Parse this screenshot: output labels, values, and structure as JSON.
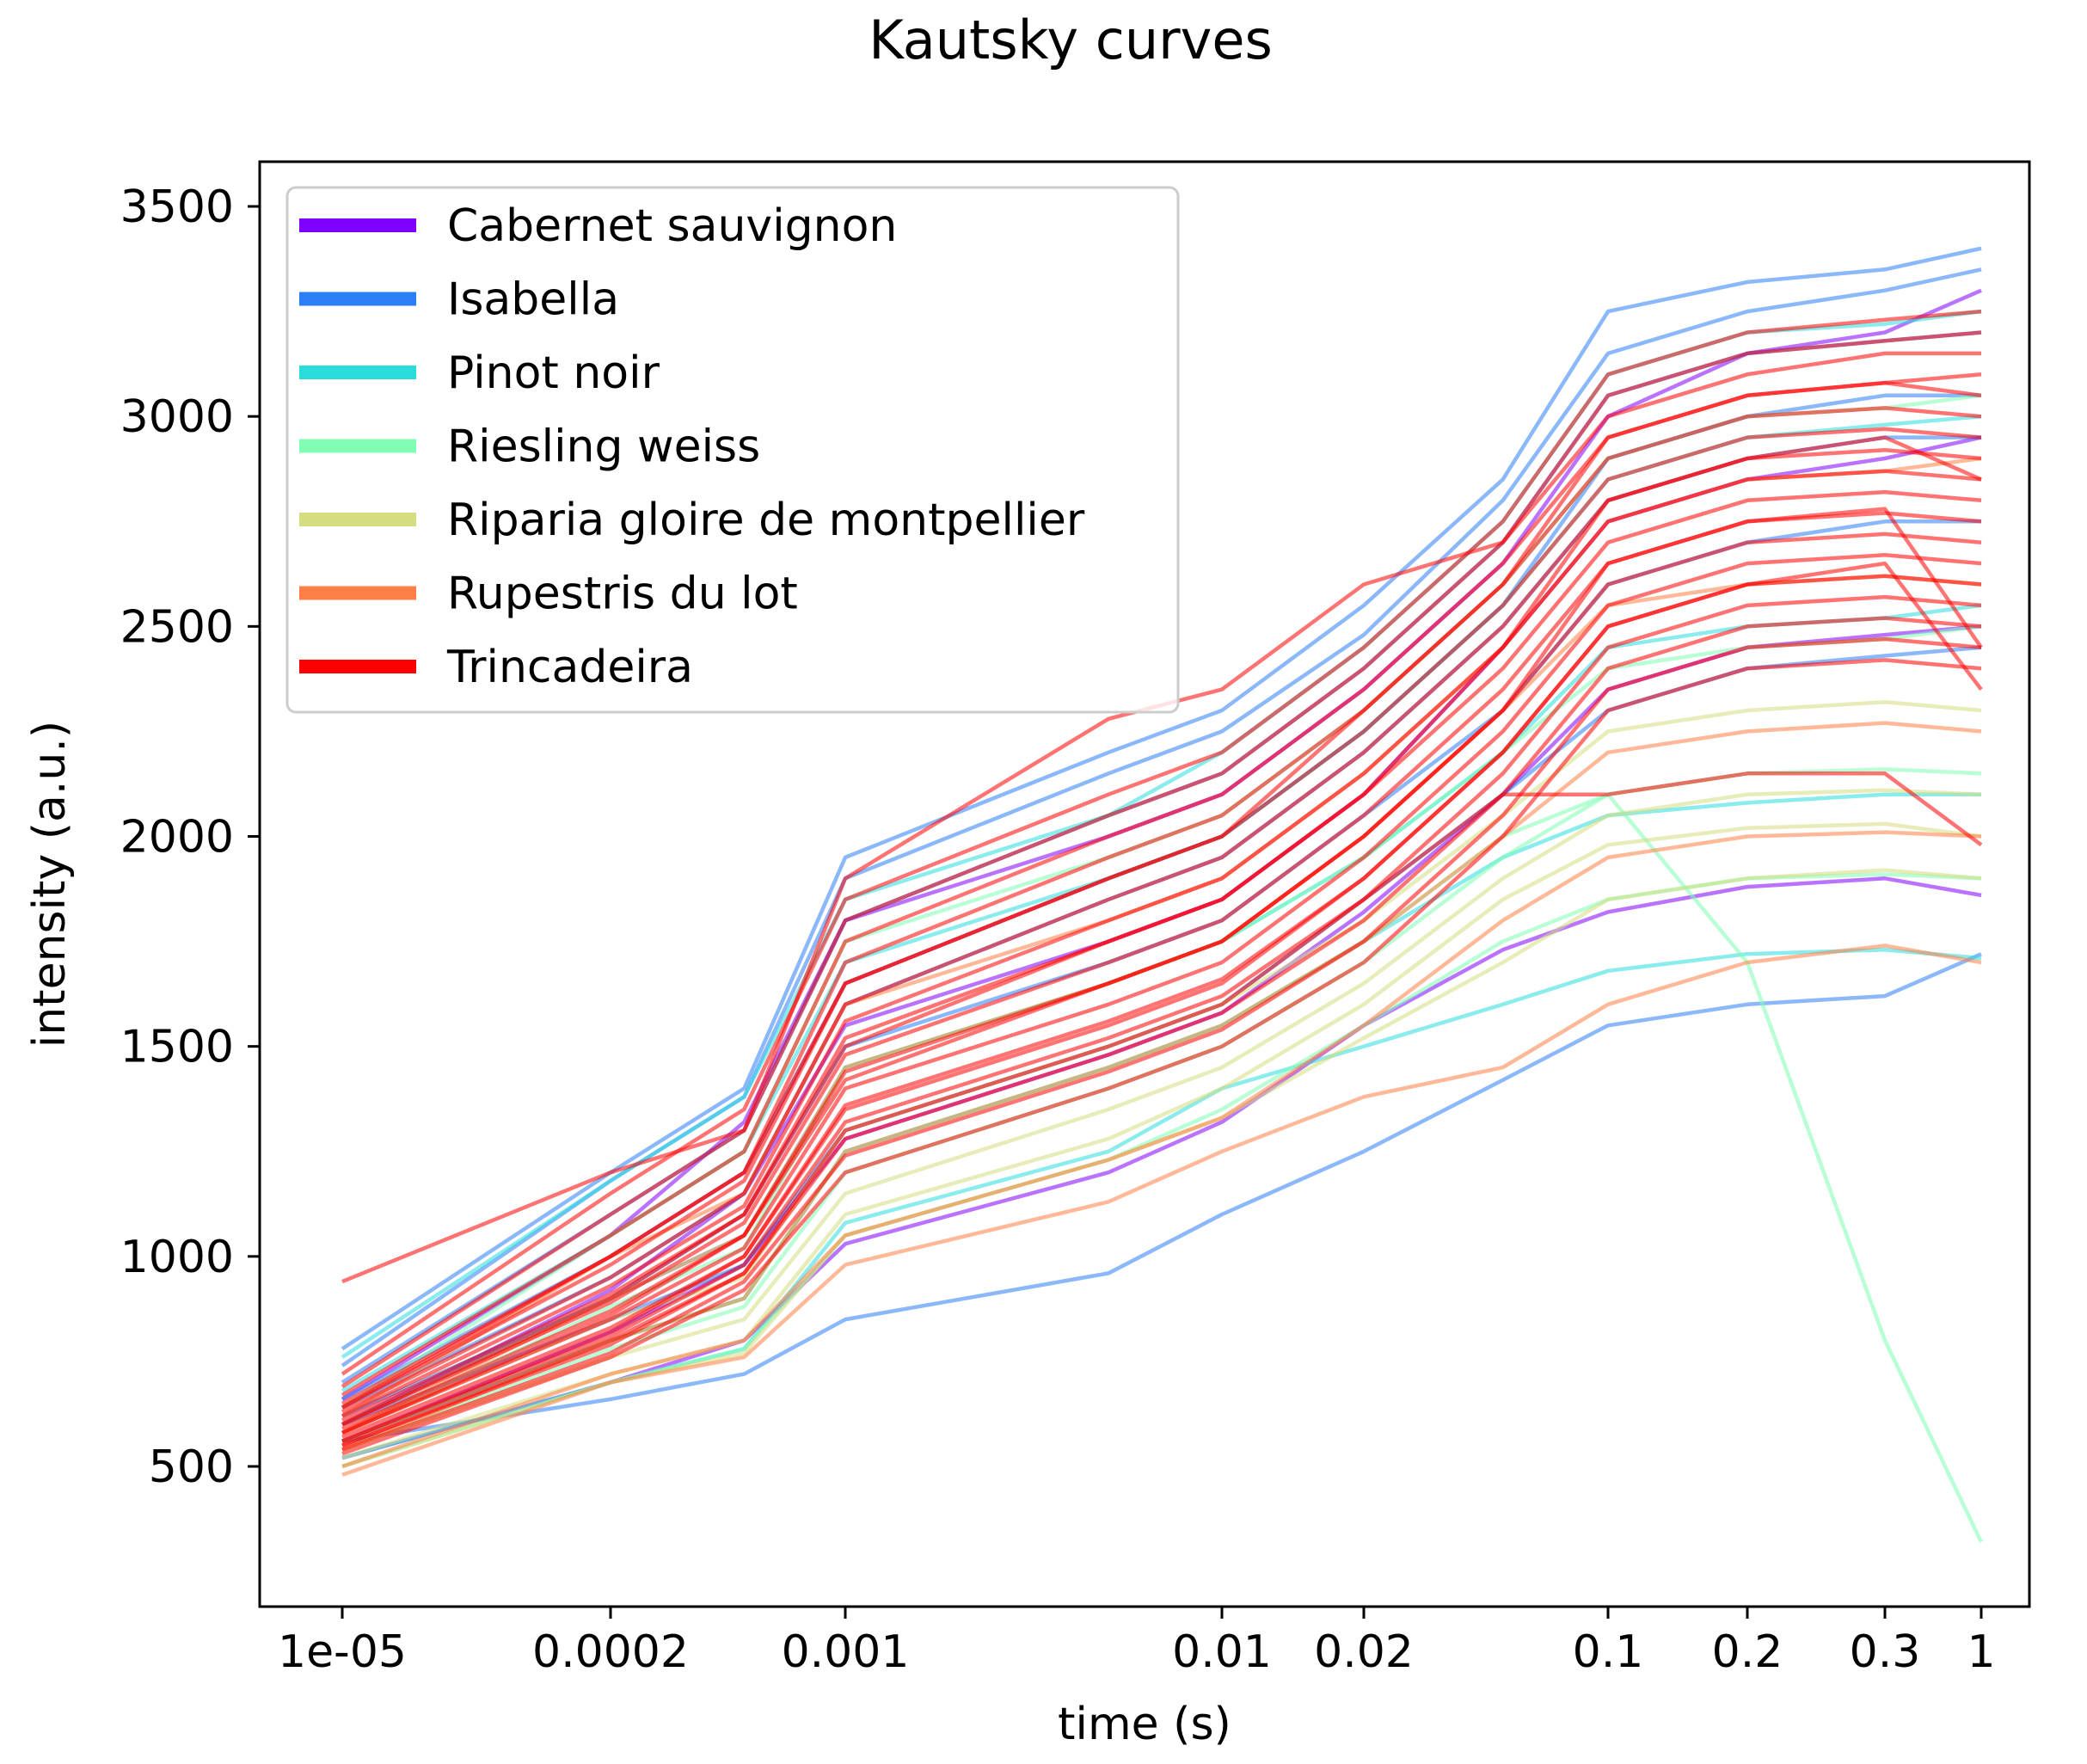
{
  "chart_data": {
    "type": "line",
    "title": "Kautsky curves",
    "xlabel": "time (s)",
    "ylabel": "intensity (a.u.)",
    "xscale": "custom-nonlinear",
    "xticks": [
      {
        "value": 1e-05,
        "label": "1e-05"
      },
      {
        "value": 0.0002,
        "label": "0.0002"
      },
      {
        "value": 0.001,
        "label": "0.001"
      },
      {
        "value": 0.01,
        "label": "0.01"
      },
      {
        "value": 0.02,
        "label": "0.02"
      },
      {
        "value": 0.1,
        "label": "0.1"
      },
      {
        "value": 0.2,
        "label": "0.2"
      },
      {
        "value": 0.3,
        "label": "0.3"
      },
      {
        "value": 1,
        "label": "1"
      }
    ],
    "yticks": [
      500,
      1000,
      1500,
      2000,
      2500,
      3000,
      3500
    ],
    "ylim": [
      200,
      3600
    ],
    "grid": false,
    "legend_position": "top-left",
    "sample_times": [
      1e-05,
      0.0002,
      0.0005,
      0.001,
      0.005,
      0.01,
      0.02,
      0.05,
      0.1,
      0.2,
      0.3,
      1
    ],
    "series": [
      {
        "name": "Cabernet sauvignon",
        "color": "#8000ff",
        "curves": [
          [
            660,
            1050,
            1320,
            1800,
            2000,
            2100,
            2350,
            2650,
            3000,
            3150,
            3200,
            3300
          ],
          [
            600,
            920,
            1150,
            1550,
            1750,
            1850,
            2100,
            2450,
            2750,
            2850,
            2900,
            2950
          ],
          [
            560,
            820,
            980,
            1280,
            1480,
            1580,
            1820,
            2100,
            2350,
            2450,
            2480,
            2500
          ],
          [
            520,
            700,
            800,
            1030,
            1200,
            1320,
            1550,
            1730,
            1820,
            1880,
            1900,
            1860
          ]
        ]
      },
      {
        "name": "Isabella",
        "color": "#2c7ef7",
        "curves": [
          [
            780,
            1200,
            1400,
            1950,
            2200,
            2300,
            2550,
            2850,
            3250,
            3320,
            3350,
            3400
          ],
          [
            740,
            1180,
            1380,
            1900,
            2150,
            2250,
            2480,
            2800,
            3150,
            3250,
            3300,
            3350
          ],
          [
            700,
            1100,
            1300,
            1800,
            2050,
            2150,
            2400,
            2700,
            3050,
            3150,
            3180,
            3200
          ],
          [
            660,
            1000,
            1200,
            1650,
            1900,
            2000,
            2250,
            2550,
            2900,
            3000,
            3050,
            3050
          ],
          [
            640,
            950,
            1150,
            1600,
            1850,
            1950,
            2200,
            2500,
            2800,
            2900,
            2950,
            2950
          ],
          [
            620,
            900,
            1100,
            1500,
            1700,
            1800,
            2050,
            2300,
            2600,
            2700,
            2750,
            2750
          ],
          [
            600,
            850,
            980,
            1300,
            1500,
            1600,
            1850,
            2100,
            2300,
            2400,
            2430,
            2450
          ],
          [
            560,
            660,
            720,
            850,
            960,
            1100,
            1250,
            1420,
            1550,
            1600,
            1620,
            1720
          ]
        ]
      },
      {
        "name": "Pinot noir",
        "color": "#2adddd",
        "curves": [
          [
            760,
            1180,
            1380,
            1850,
            2050,
            2200,
            2450,
            2750,
            3100,
            3200,
            3220,
            3250
          ],
          [
            680,
            1050,
            1250,
            1700,
            1900,
            2000,
            2250,
            2550,
            2850,
            2950,
            2980,
            3000
          ],
          [
            600,
            900,
            1050,
            1450,
            1650,
            1750,
            1950,
            2200,
            2450,
            2500,
            2520,
            2550
          ],
          [
            560,
            800,
            900,
            1250,
            1450,
            1550,
            1750,
            1950,
            2050,
            2080,
            2100,
            2100
          ],
          [
            520,
            700,
            780,
            1080,
            1250,
            1400,
            1500,
            1600,
            1680,
            1720,
            1730,
            1710
          ]
        ]
      },
      {
        "name": "Riesling weiss",
        "color": "#80ffb4",
        "curves": [
          [
            640,
            1050,
            1250,
            1750,
            1950,
            2050,
            2300,
            2600,
            2900,
            3000,
            3020,
            3050
          ],
          [
            580,
            880,
            1020,
            1450,
            1650,
            1750,
            1950,
            2200,
            2400,
            2450,
            2470,
            2500
          ],
          [
            540,
            780,
            880,
            1200,
            1400,
            1500,
            1700,
            1950,
            2100,
            2150,
            2160,
            2150
          ],
          [
            500,
            700,
            780,
            1050,
            1230,
            1350,
            1550,
            1750,
            1850,
            1900,
            1910,
            1900
          ],
          [
            560,
            800,
            900,
            1250,
            1450,
            1550,
            1750,
            2000,
            2100,
            1700,
            800,
            320
          ]
        ]
      },
      {
        "name": "Riparia gloire de montpellier",
        "color": "#d4dd80",
        "curves": [
          [
            580,
            850,
            950,
            1300,
            1500,
            1600,
            1800,
            2050,
            2250,
            2300,
            2320,
            2300
          ],
          [
            540,
            760,
            850,
            1150,
            1350,
            1450,
            1650,
            1900,
            2050,
            2100,
            2110,
            2100
          ],
          [
            520,
            720,
            800,
            1100,
            1280,
            1400,
            1600,
            1850,
            1980,
            2020,
            2030,
            2000
          ],
          [
            500,
            700,
            770,
            1050,
            1230,
            1330,
            1520,
            1700,
            1850,
            1900,
            1920,
            1900
          ]
        ]
      },
      {
        "name": "Rupestris du lot",
        "color": "#ff8046",
        "curves": [
          [
            620,
            1000,
            1150,
            1600,
            1800,
            1900,
            2150,
            2450,
            2750,
            2850,
            2870,
            2900
          ],
          [
            580,
            900,
            1050,
            1450,
            1650,
            1750,
            2000,
            2300,
            2550,
            2600,
            2620,
            2600
          ],
          [
            540,
            800,
            900,
            1250,
            1450,
            1550,
            1750,
            2000,
            2200,
            2250,
            2270,
            2250
          ],
          [
            500,
            720,
            800,
            1050,
            1230,
            1330,
            1550,
            1800,
            1950,
            2000,
            2010,
            2000
          ],
          [
            480,
            700,
            760,
            980,
            1130,
            1250,
            1380,
            1450,
            1600,
            1700,
            1740,
            1700
          ]
        ]
      },
      {
        "name": "Trincadeira",
        "color": "#ff0000",
        "curves": [
          [
            940,
            1200,
            1300,
            1900,
            2280,
            2350,
            2600,
            2700,
            3000,
            3100,
            3150,
            3150
          ],
          [
            720,
            1150,
            1350,
            1850,
            2100,
            2200,
            2450,
            2750,
            3100,
            3200,
            3230,
            3250
          ],
          [
            690,
            1100,
            1300,
            1800,
            2050,
            2150,
            2400,
            2700,
            3050,
            3150,
            3180,
            3200
          ],
          [
            670,
            1050,
            1250,
            1750,
            2000,
            2100,
            2350,
            2650,
            2950,
            3050,
            3080,
            3100
          ],
          [
            650,
            1000,
            1200,
            1700,
            1950,
            2050,
            2300,
            2600,
            2900,
            3000,
            3020,
            3000
          ],
          [
            640,
            980,
            1180,
            1650,
            1900,
            2000,
            2250,
            2550,
            2850,
            2950,
            2970,
            2950
          ],
          [
            630,
            950,
            1150,
            1600,
            1850,
            1950,
            2200,
            2500,
            2800,
            2900,
            2920,
            2900
          ],
          [
            620,
            930,
            1120,
            1560,
            1800,
            1900,
            2150,
            2450,
            2750,
            2850,
            2870,
            2850
          ],
          [
            610,
            910,
            1100,
            1520,
            1750,
            1850,
            2100,
            2400,
            2700,
            2800,
            2820,
            2800
          ],
          [
            600,
            890,
            1080,
            1480,
            1700,
            1800,
            2050,
            2350,
            2650,
            2750,
            2770,
            2750
          ],
          [
            590,
            870,
            1050,
            1440,
            1650,
            1750,
            2000,
            2300,
            2600,
            2700,
            2720,
            2700
          ],
          [
            580,
            850,
            1020,
            1400,
            1600,
            1700,
            1950,
            2250,
            2550,
            2650,
            2670,
            2650
          ],
          [
            570,
            830,
            1000,
            1360,
            1560,
            1660,
            1900,
            2200,
            2500,
            2600,
            2620,
            2600
          ],
          [
            560,
            810,
            980,
            1320,
            1520,
            1620,
            1850,
            2150,
            2450,
            2550,
            2570,
            2550
          ],
          [
            550,
            790,
            960,
            1280,
            1480,
            1580,
            1800,
            2100,
            2400,
            2500,
            2520,
            2500
          ],
          [
            540,
            770,
            940,
            1240,
            1440,
            1540,
            1750,
            2050,
            2350,
            2450,
            2470,
            2450
          ],
          [
            530,
            760,
            920,
            1200,
            1400,
            1500,
            1700,
            2000,
            2300,
            2400,
            2420,
            2400
          ],
          [
            600,
            900,
            1100,
            1500,
            1750,
            1850,
            2100,
            2450,
            2800,
            2900,
            2950,
            2850
          ],
          [
            640,
            1000,
            1200,
            1650,
            1900,
            2000,
            2300,
            2600,
            2950,
            3050,
            3080,
            3050
          ],
          [
            560,
            820,
            1000,
            1350,
            1550,
            1650,
            1900,
            2200,
            2500,
            2600,
            2650,
            2350
          ],
          [
            580,
            860,
            1050,
            1420,
            1650,
            1750,
            2000,
            2300,
            2650,
            2750,
            2780,
            2450
          ],
          [
            550,
            800,
            960,
            1300,
            1500,
            1600,
            1850,
            2100,
            2100,
            2150,
            2150,
            1980
          ]
        ]
      }
    ]
  }
}
